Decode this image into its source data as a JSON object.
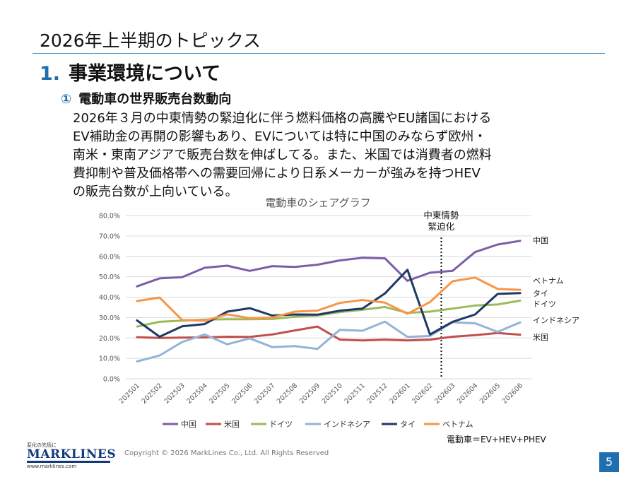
{
  "slide": {
    "title": "2026年上半期のトピックス",
    "section_number": "1.",
    "section_title": "事業環境について",
    "subsection_mark": "①",
    "subsection_title": "電動車の世界販売台数動向",
    "body_lines": [
      "2026年３月の中東情勢の緊迫化に伴う燃料価格の高騰やEU諸国における",
      "EV補助金の再開の影響もあり、EVについては特に中国のみならず欧州・",
      "南米・東南アジアで販売台数を伸ばしてる。また、米国では消費者の燃料",
      "費抑制や普及価格帯への需要回帰により日系メーカーが強みを持つHEV",
      "の販売台数が上向いている。"
    ],
    "definition_note": "電動車＝EV+HEV+PHEV",
    "copyright": "Copyright © 2026 MarkLines Co., Ltd. All Rights Reserved",
    "page_number": "5",
    "logo": {
      "tagline": "変化の先読に",
      "name": "MARKLINES",
      "url": "www.marklines.com"
    }
  },
  "chart_data": {
    "type": "line",
    "title": "電動車のシェアグラフ",
    "xlabel": "",
    "ylabel": "",
    "ylim": [
      0,
      80
    ],
    "yticks": [
      "0.0%",
      "10.0%",
      "20.0%",
      "30.0%",
      "40.0%",
      "50.0%",
      "60.0%",
      "70.0%",
      "80.0%"
    ],
    "grid": true,
    "legend_position": "bottom",
    "categories": [
      "202501",
      "202502",
      "202503",
      "202504",
      "202505",
      "202506",
      "202507",
      "202508",
      "202509",
      "202510",
      "202511",
      "202512",
      "202601",
      "202602",
      "202603",
      "202604",
      "202605",
      "202606"
    ],
    "series": [
      {
        "name": "中国",
        "color": "#7b5ea7",
        "values": [
          45.3,
          49.2,
          49.8,
          54.4,
          55.4,
          52.9,
          55.2,
          54.8,
          55.9,
          58.0,
          59.3,
          59.0,
          48.0,
          52.0,
          52.9,
          62.1,
          65.8,
          67.6
        ]
      },
      {
        "name": "米国",
        "color": "#c0504d",
        "values": [
          20.4,
          20.0,
          20.2,
          20.3,
          20.6,
          20.5,
          21.7,
          23.7,
          25.6,
          19.2,
          18.8,
          19.2,
          18.8,
          19.2,
          20.6,
          21.4,
          22.4,
          21.6
        ]
      },
      {
        "name": "ドイツ",
        "color": "#9bbb59",
        "values": [
          25.6,
          27.9,
          28.5,
          29.0,
          29.2,
          29.2,
          29.3,
          30.4,
          31.0,
          32.7,
          33.8,
          35.2,
          32.3,
          32.9,
          34.4,
          35.9,
          36.4,
          38.3
        ]
      },
      {
        "name": "インドネシア",
        "color": "#95b3d7",
        "values": [
          8.5,
          11.4,
          18.0,
          21.7,
          16.9,
          19.8,
          15.5,
          16.0,
          14.6,
          24.0,
          23.5,
          28.0,
          20.5,
          21.0,
          27.7,
          27.2,
          23.0,
          27.6
        ]
      },
      {
        "name": "タイ",
        "color": "#1f3864",
        "values": [
          28.6,
          20.6,
          25.7,
          26.8,
          32.9,
          34.6,
          31.0,
          31.5,
          31.4,
          33.4,
          34.4,
          41.8,
          53.4,
          21.7,
          27.9,
          31.5,
          41.6,
          42.0
        ]
      },
      {
        "name": "ベトナム",
        "color": "#f79646",
        "values": [
          38.1,
          39.8,
          28.8,
          28.4,
          31.6,
          29.7,
          30.0,
          32.9,
          33.4,
          37.2,
          38.6,
          37.3,
          31.9,
          37.6,
          47.8,
          49.6,
          44.0,
          43.6
        ]
      }
    ],
    "annotation": {
      "text_lines": [
        "中東情勢",
        "緊迫化"
      ],
      "at_category": "202603",
      "style": "dotted-vertical-line"
    }
  }
}
